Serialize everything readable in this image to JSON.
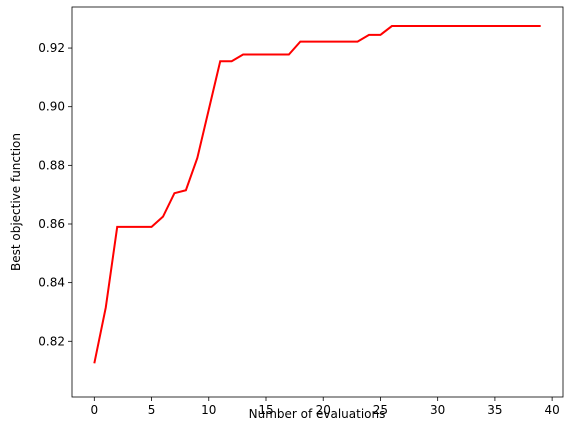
{
  "chart_data": {
    "type": "line",
    "xlabel": "Number of evaluations",
    "ylabel": "Best objective function",
    "x": [
      0,
      1,
      2,
      3,
      4,
      5,
      6,
      7,
      8,
      9,
      10,
      11,
      12,
      13,
      14,
      15,
      16,
      17,
      18,
      19,
      20,
      21,
      22,
      23,
      24,
      25,
      26,
      27,
      28,
      29,
      30,
      31,
      32,
      33,
      34,
      35,
      36,
      37,
      38,
      39
    ],
    "series": [
      {
        "color": "#ff0000",
        "values": [
          0.8125,
          0.8315,
          0.859,
          0.859,
          0.859,
          0.859,
          0.8625,
          0.8705,
          0.8715,
          0.8825,
          0.899,
          0.9155,
          0.9155,
          0.9178,
          0.9178,
          0.9178,
          0.9178,
          0.9178,
          0.9222,
          0.9222,
          0.9222,
          0.9222,
          0.9222,
          0.9222,
          0.9245,
          0.9245,
          0.9275,
          0.9275,
          0.9275,
          0.9275,
          0.9275,
          0.9275,
          0.9275,
          0.9275,
          0.9275,
          0.9275,
          0.9275,
          0.9275,
          0.9275,
          0.9275
        ]
      }
    ],
    "xlim": [
      -1.95,
      40.95
    ],
    "xticks": [
      0,
      5,
      10,
      15,
      20,
      25,
      30,
      35,
      40
    ],
    "ylim": [
      0.801,
      0.934
    ],
    "yticks": [
      0.82,
      0.84,
      0.86,
      0.88,
      {
        "value": 0.9,
        "label": "0.90"
      },
      0.92
    ]
  }
}
